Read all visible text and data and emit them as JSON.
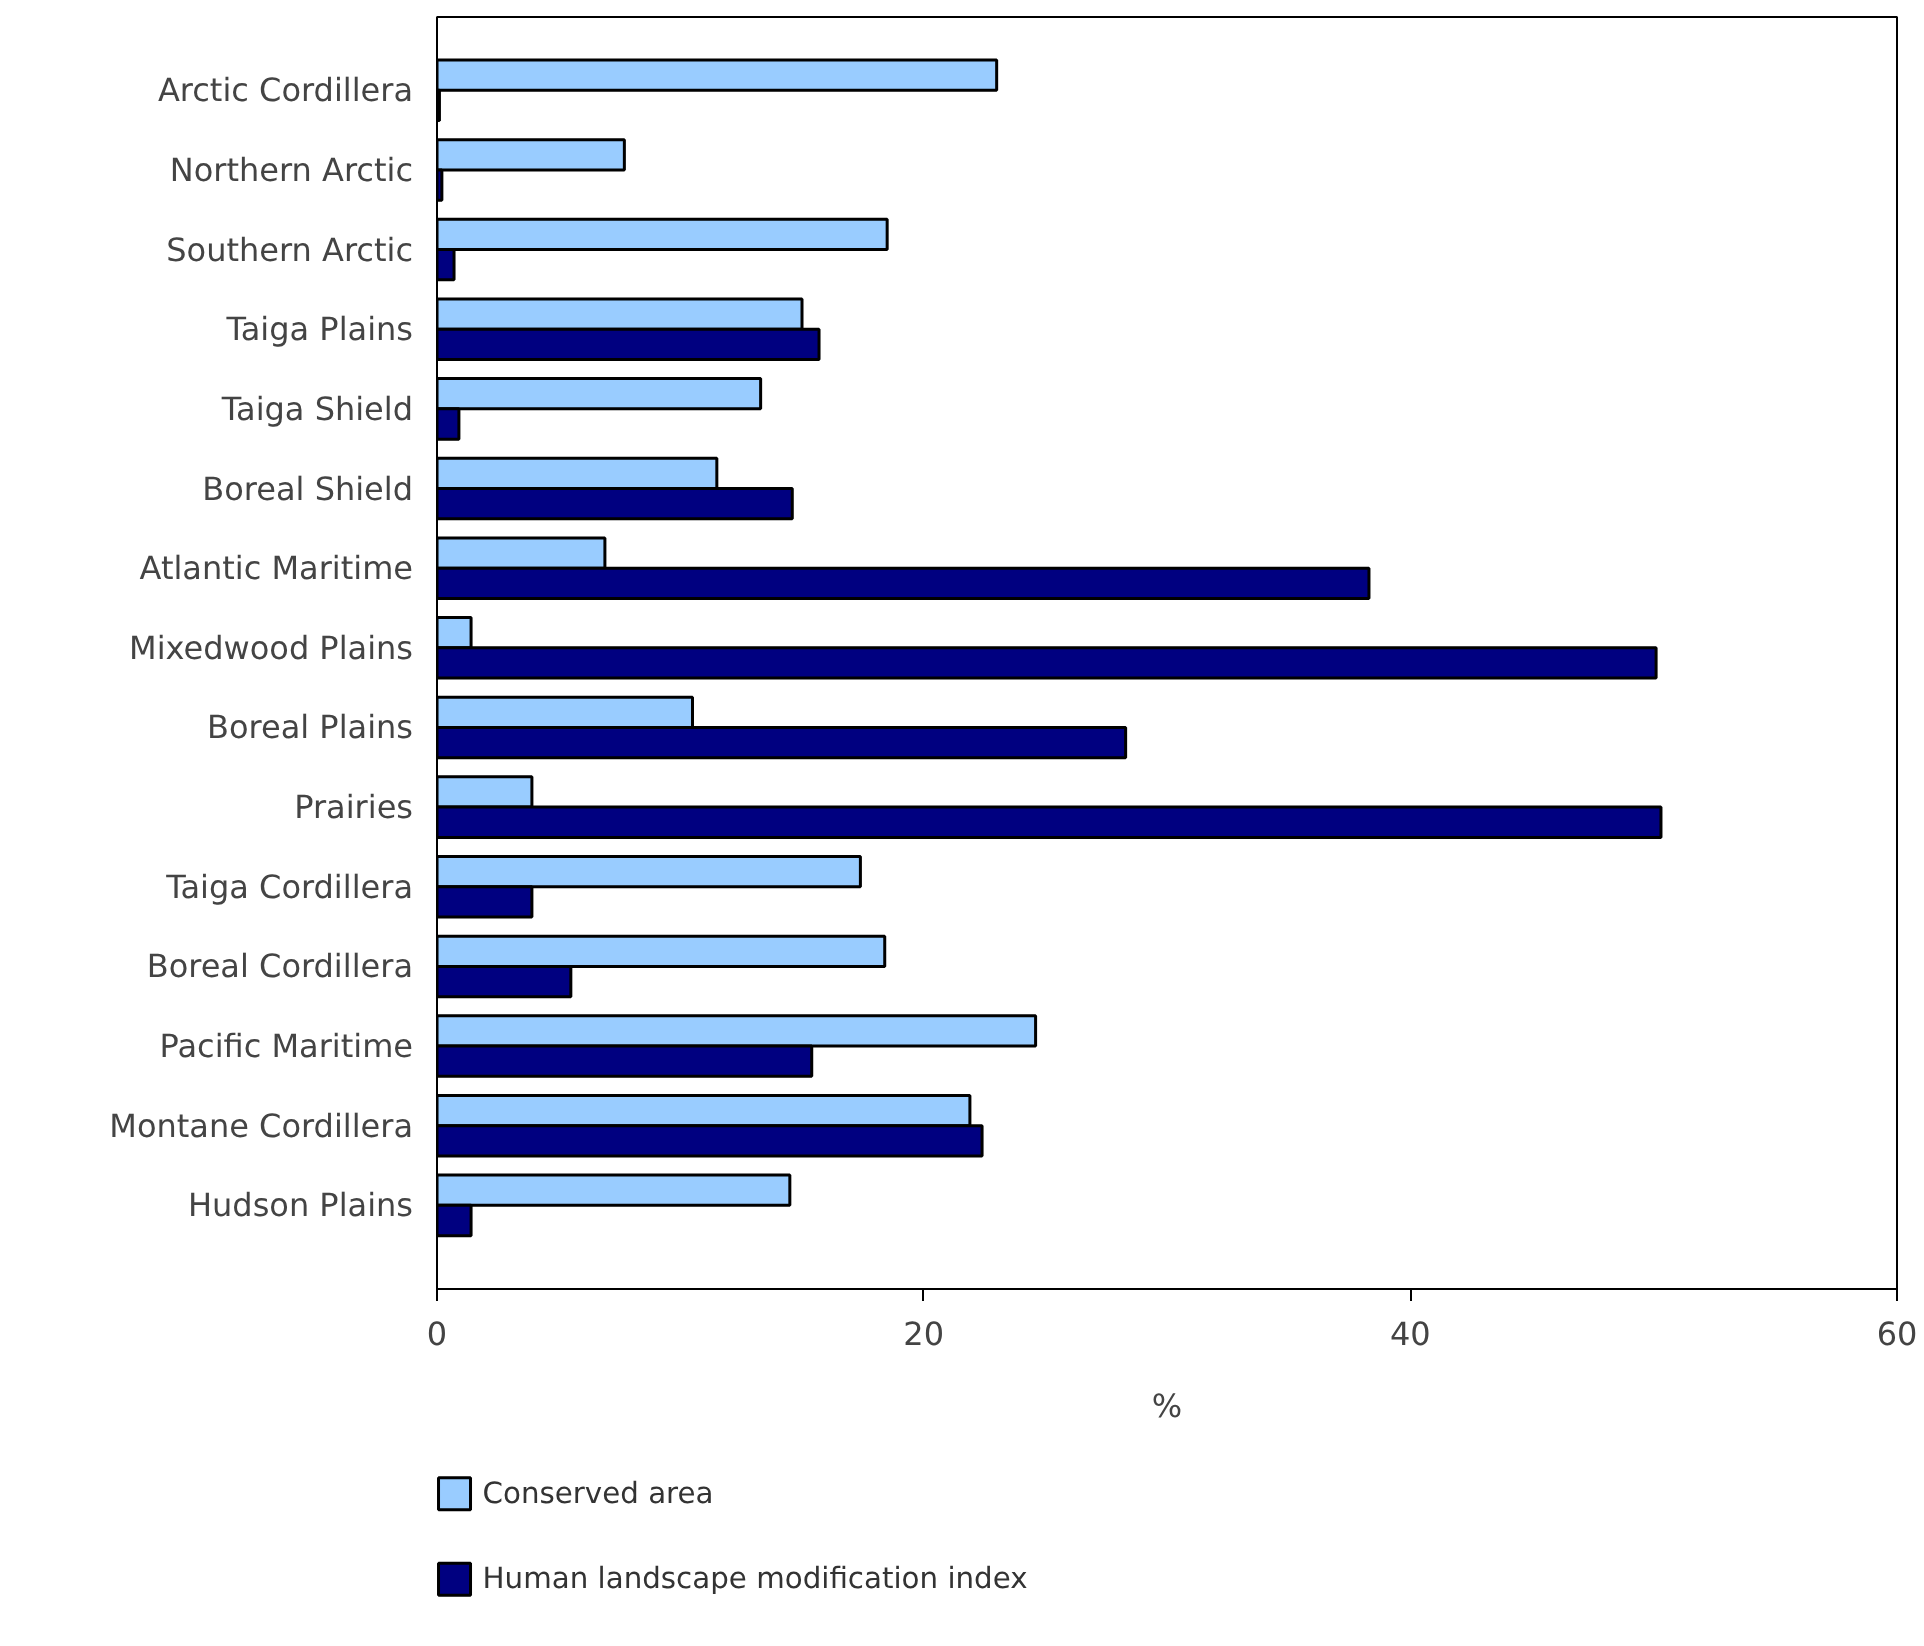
{
  "chart_data": {
    "type": "bar",
    "orientation": "horizontal",
    "xlabel": "%",
    "categories": [
      "Arctic Cordillera",
      "Northern Arctic",
      "Southern Arctic",
      "Taiga Plains",
      "Taiga Shield",
      "Boreal Shield",
      "Atlantic Maritime",
      "Mixedwood Plains",
      "Boreal Plains",
      "Prairies",
      "Taiga Cordillera",
      "Boreal Cordillera",
      "Pacific Maritime",
      "Montane Cordillera",
      "Hudson Plains"
    ],
    "series": [
      {
        "name": "Conserved area",
        "color": "#99ccff",
        "values": [
          23.0,
          7.7,
          18.5,
          15.0,
          13.3,
          11.5,
          6.9,
          1.4,
          10.5,
          3.9,
          17.4,
          18.4,
          24.6,
          21.9,
          14.5
        ]
      },
      {
        "name": "Human landscape modification index",
        "color": "#000080",
        "values": [
          0.1,
          0.2,
          0.7,
          15.7,
          0.9,
          14.6,
          38.3,
          50.1,
          28.3,
          50.3,
          3.9,
          5.5,
          15.4,
          22.4,
          1.4
        ]
      }
    ],
    "xlim": [
      0,
      60
    ],
    "xticks": [
      0,
      20,
      40,
      60
    ],
    "grid": false,
    "legend": "bottom"
  }
}
